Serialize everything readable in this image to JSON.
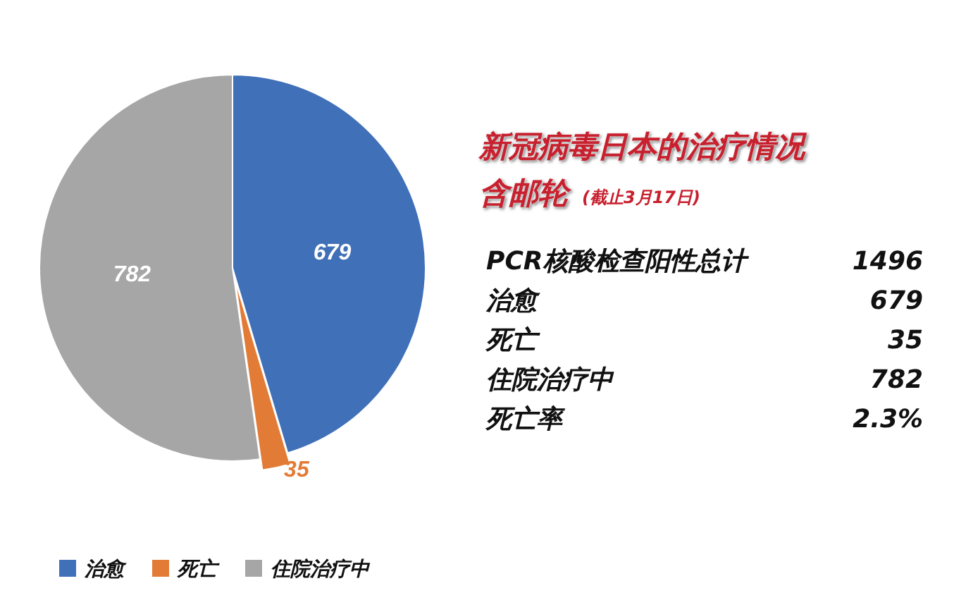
{
  "chart_data": {
    "type": "pie",
    "title": "新冠病毒日本的治疗情况含邮轮",
    "subtitle": "(截止3月17日)",
    "categories": [
      "治愈",
      "死亡",
      "住院治疗中"
    ],
    "values": [
      679,
      35,
      782
    ],
    "colors": [
      "#4070b8",
      "#e27b35",
      "#a6a6a6"
    ],
    "data_labels": true,
    "legend": "bottom left",
    "annotations": [
      "PCR核酸检查阳性总计",
      "1496",
      "治愈",
      "679",
      "死亡",
      "35",
      "住院治疗中",
      "782",
      "死亡率",
      "2.3%"
    ]
  }
}
